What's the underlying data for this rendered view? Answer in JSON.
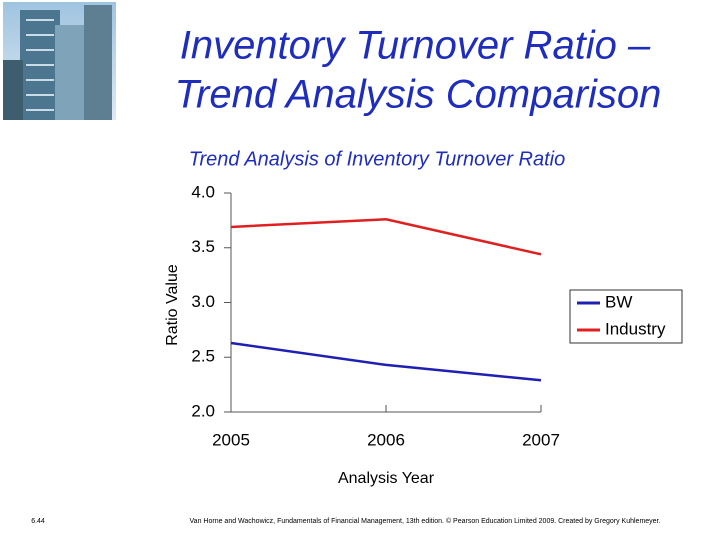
{
  "slide": {
    "title_lines": [
      "Inventory Turnover Ratio –",
      "Trend Analysis Comparison"
    ],
    "page_number": "6.44",
    "footer": "Van Horne and Wachowicz, Fundamentals of Financial Management, 13th edition. © Pearson Education Limited 2009. Created by Gregory Kuhlemeyer."
  },
  "chart_data": {
    "type": "line",
    "title": "Trend Analysis of Inventory Turnover Ratio",
    "x_label": "Analysis Year",
    "y_label": "Ratio Value",
    "categories": [
      "2005",
      "2006",
      "2007"
    ],
    "series": [
      {
        "name": "BW",
        "color": "#1f1fb4",
        "values": [
          2.63,
          2.43,
          2.29
        ]
      },
      {
        "name": "Industry",
        "color": "#e02020",
        "values": [
          3.69,
          3.76,
          3.44
        ]
      }
    ],
    "ylim": [
      2.0,
      4.0
    ],
    "yticks": [
      {
        "value": 2.0,
        "label": "2.0"
      },
      2.5,
      {
        "value": 3.0,
        "label": "3.0"
      },
      3.5,
      {
        "value": 4.0,
        "label": "4.0"
      }
    ],
    "legend": "right"
  }
}
